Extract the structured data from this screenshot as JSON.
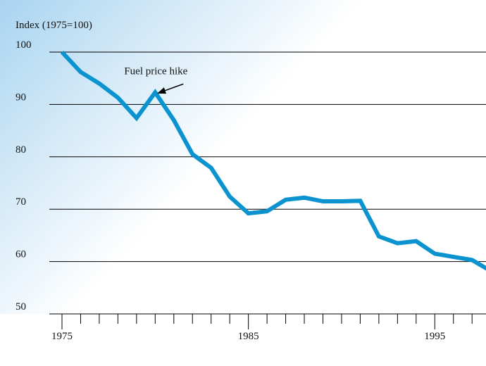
{
  "chart_data": {
    "type": "line",
    "y_label": "Index (1975=100)",
    "annotations": [
      {
        "text": "Fuel price hike",
        "x": 1980,
        "y": 92.3
      }
    ],
    "x": [
      1975,
      1976,
      1977,
      1978,
      1979,
      1980,
      1981,
      1982,
      1983,
      1984,
      1985,
      1986,
      1987,
      1988,
      1989,
      1990,
      1991,
      1992,
      1993,
      1994,
      1995,
      1996,
      1997,
      1998
    ],
    "series": [
      {
        "name": "Index",
        "color": "#0b93cf",
        "values": [
          100,
          96.2,
          94,
          91.3,
          87.4,
          92.3,
          87,
          80.5,
          77.9,
          72.4,
          69.2,
          69.6,
          71.8,
          72.2,
          71.5,
          71.5,
          71.6,
          64.8,
          63.5,
          63.9,
          61.5,
          60.9,
          60.3,
          58.2
        ]
      }
    ],
    "xlim": [
      1975,
      1998.05
    ],
    "xticks": [
      1975,
      1985,
      1995
    ],
    "xminorticks": [
      1976,
      1977,
      1978,
      1979,
      1980,
      1981,
      1982,
      1983,
      1984,
      1986,
      1987,
      1988,
      1989,
      1990,
      1991,
      1992,
      1993,
      1994,
      1996,
      1997
    ],
    "ylim": [
      50,
      100
    ],
    "yticks": [
      50,
      60,
      70,
      80,
      90,
      100
    ],
    "grid": true
  }
}
